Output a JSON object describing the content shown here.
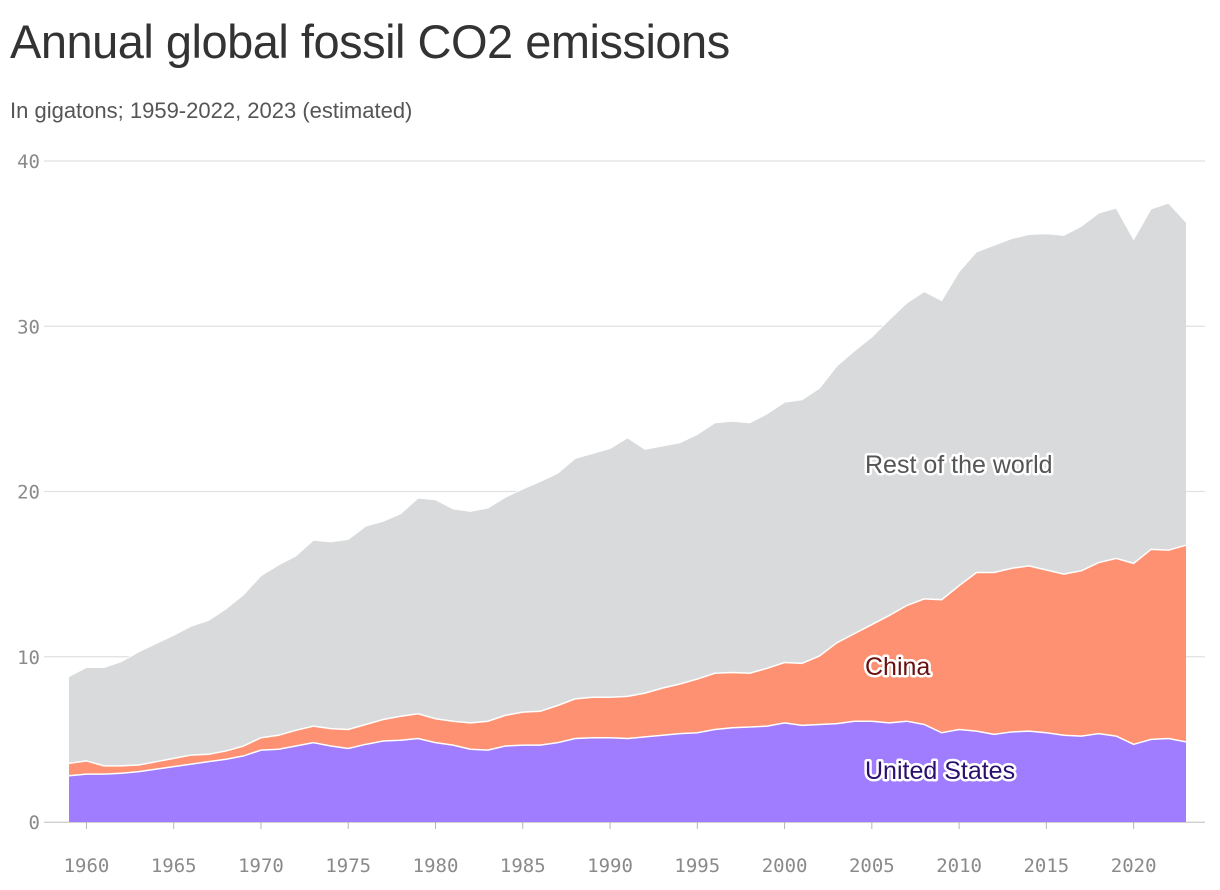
{
  "title": "Annual global fossil CO2 emissions",
  "subtitle": "In gigatons; 1959-2022, 2023 (estimated)",
  "chart_data": {
    "type": "area",
    "stacked": true,
    "x": [
      1959,
      1960,
      1961,
      1962,
      1963,
      1964,
      1965,
      1966,
      1967,
      1968,
      1969,
      1970,
      1971,
      1972,
      1973,
      1974,
      1975,
      1976,
      1977,
      1978,
      1979,
      1980,
      1981,
      1982,
      1983,
      1984,
      1985,
      1986,
      1987,
      1988,
      1989,
      1990,
      1991,
      1992,
      1993,
      1994,
      1995,
      1996,
      1997,
      1998,
      1999,
      2000,
      2001,
      2002,
      2003,
      2004,
      2005,
      2006,
      2007,
      2008,
      2009,
      2010,
      2011,
      2012,
      2013,
      2014,
      2015,
      2016,
      2017,
      2018,
      2019,
      2020,
      2021,
      2022,
      2023
    ],
    "xticks": [
      1960,
      1965,
      1970,
      1975,
      1980,
      1985,
      1990,
      1995,
      2000,
      2005,
      2010,
      2015,
      2020
    ],
    "ylim": [
      0,
      40
    ],
    "yticks": [
      0,
      10,
      20,
      30,
      40
    ],
    "grid": true,
    "legend": "inline labels",
    "series": [
      {
        "name": "United States",
        "color": "#a07cff",
        "label_color": "#2a0f6e",
        "values": [
          2.8,
          2.9,
          2.9,
          2.95,
          3.05,
          3.2,
          3.35,
          3.5,
          3.65,
          3.8,
          4.0,
          4.35,
          4.4,
          4.6,
          4.8,
          4.6,
          4.45,
          4.7,
          4.9,
          4.95,
          5.05,
          4.8,
          4.65,
          4.4,
          4.35,
          4.6,
          4.65,
          4.65,
          4.8,
          5.05,
          5.1,
          5.1,
          5.05,
          5.15,
          5.25,
          5.35,
          5.4,
          5.6,
          5.7,
          5.75,
          5.8,
          6.0,
          5.85,
          5.9,
          5.95,
          6.1,
          6.1,
          6.0,
          6.1,
          5.9,
          5.4,
          5.6,
          5.5,
          5.3,
          5.45,
          5.5,
          5.4,
          5.25,
          5.2,
          5.35,
          5.2,
          4.7,
          5.0,
          5.05,
          4.85
        ]
      },
      {
        "name": "China",
        "color": "#ff9173",
        "label_color": "#6b0f0f",
        "values": [
          0.75,
          0.8,
          0.5,
          0.45,
          0.4,
          0.45,
          0.5,
          0.55,
          0.45,
          0.5,
          0.6,
          0.75,
          0.85,
          0.95,
          1.0,
          1.05,
          1.15,
          1.2,
          1.3,
          1.45,
          1.5,
          1.45,
          1.45,
          1.6,
          1.75,
          1.85,
          2.0,
          2.05,
          2.25,
          2.4,
          2.45,
          2.45,
          2.55,
          2.65,
          2.85,
          3.0,
          3.25,
          3.4,
          3.35,
          3.25,
          3.5,
          3.65,
          3.75,
          4.15,
          4.9,
          5.3,
          5.85,
          6.5,
          7.0,
          7.6,
          8.05,
          8.7,
          9.6,
          9.8,
          9.9,
          10.0,
          9.85,
          9.75,
          10.0,
          10.35,
          10.75,
          10.95,
          11.5,
          11.4,
          11.9
        ]
      },
      {
        "name": "Rest of the world",
        "color": "#d9dadb",
        "label_color": "#555555",
        "values": [
          5.25,
          5.65,
          5.95,
          6.3,
          6.85,
          7.15,
          7.45,
          7.8,
          8.1,
          8.6,
          9.15,
          9.8,
          10.3,
          10.55,
          11.25,
          11.3,
          11.5,
          12.0,
          12.0,
          12.25,
          13.05,
          13.25,
          12.85,
          12.8,
          12.9,
          13.2,
          13.5,
          13.9,
          14.05,
          14.55,
          14.75,
          15.05,
          15.65,
          14.75,
          14.65,
          14.6,
          14.8,
          15.15,
          15.2,
          15.15,
          15.4,
          15.75,
          15.95,
          16.2,
          16.75,
          17.1,
          17.4,
          17.9,
          18.3,
          18.6,
          18.1,
          19.0,
          19.4,
          19.8,
          19.95,
          20.05,
          20.35,
          20.5,
          20.85,
          21.15,
          21.2,
          19.6,
          20.6,
          21.0,
          19.55
        ]
      }
    ]
  }
}
